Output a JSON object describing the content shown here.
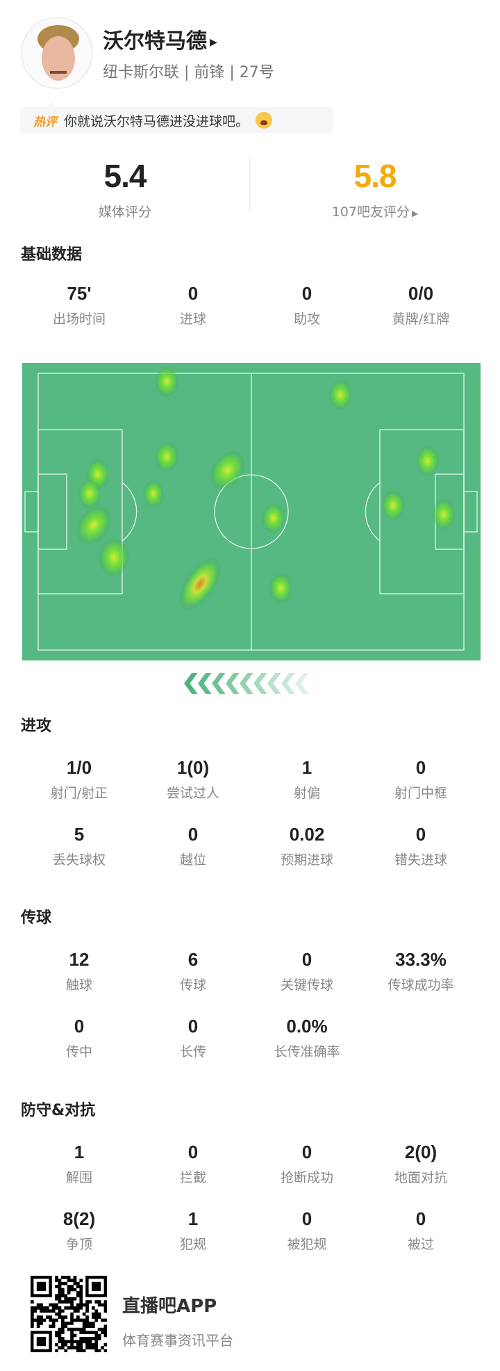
{
  "player": {
    "name": "沃尔特马德",
    "subtitle": "纽卡斯尔联 | 前锋 | 27号"
  },
  "hot_comment": {
    "tag": "热评",
    "text": "你就说沃尔特马德进没进球吧。"
  },
  "ratings": {
    "media": {
      "value": "5.4",
      "label": "媒体评分"
    },
    "fans": {
      "value": "5.8",
      "label": "107吧友评分",
      "color": "#f5a90a"
    }
  },
  "sections": [
    {
      "title": "基础数据",
      "rows": [
        [
          {
            "v": "75'",
            "l": "出场时间"
          },
          {
            "v": "0",
            "l": "进球"
          },
          {
            "v": "0",
            "l": "助攻"
          },
          {
            "v": "0/0",
            "l": "黄牌/红牌"
          }
        ]
      ]
    },
    {
      "title": "进攻",
      "rows": [
        [
          {
            "v": "1/0",
            "l": "射门/射正"
          },
          {
            "v": "1(0)",
            "l": "尝试过人"
          },
          {
            "v": "1",
            "l": "射偏"
          },
          {
            "v": "0",
            "l": "射门中框"
          }
        ],
        [
          {
            "v": "5",
            "l": "丢失球权"
          },
          {
            "v": "0",
            "l": "越位"
          },
          {
            "v": "0.02",
            "l": "预期进球"
          },
          {
            "v": "0",
            "l": "错失进球"
          }
        ]
      ]
    },
    {
      "title": "传球",
      "rows": [
        [
          {
            "v": "12",
            "l": "触球"
          },
          {
            "v": "6",
            "l": "传球"
          },
          {
            "v": "0",
            "l": "关键传球"
          },
          {
            "v": "33.3%",
            "l": "传球成功率"
          }
        ],
        [
          {
            "v": "0",
            "l": "传中"
          },
          {
            "v": "0",
            "l": "长传"
          },
          {
            "v": "0.0%",
            "l": "长传准确率"
          }
        ]
      ]
    },
    {
      "title": "防守&对抗",
      "rows": [
        [
          {
            "v": "1",
            "l": "解围"
          },
          {
            "v": "0",
            "l": "拦截"
          },
          {
            "v": "0",
            "l": "抢断成功"
          },
          {
            "v": "2(0)",
            "l": "地面对抗"
          }
        ],
        [
          {
            "v": "8(2)",
            "l": "争顶"
          },
          {
            "v": "1",
            "l": "犯规"
          },
          {
            "v": "0",
            "l": "被犯规"
          },
          {
            "v": "0",
            "l": "被过"
          }
        ]
      ]
    }
  ],
  "heatmap": {
    "pitch_color": "#55b981",
    "attack_direction": "left",
    "points_m": [
      [
        31.7,
        2,
        1
      ],
      [
        74.5,
        5.3,
        1
      ],
      [
        31.7,
        20.5,
        1
      ],
      [
        46.7,
        23.8,
        1.4
      ],
      [
        14.7,
        24.8,
        1
      ],
      [
        12.7,
        29.6,
        1
      ],
      [
        28.4,
        29.6,
        0.9
      ],
      [
        13.7,
        37.3,
        1.4
      ],
      [
        18.7,
        45.3,
        1.3
      ],
      [
        39.9,
        51.8,
        2
      ],
      [
        58,
        35.6,
        1
      ],
      [
        59.8,
        52.8,
        1
      ],
      [
        96,
        21.5,
        1
      ],
      [
        87.5,
        32.5,
        1
      ],
      [
        100,
        34.7,
        1
      ]
    ]
  },
  "footer": {
    "app": "直播吧APP",
    "tagline": "体育赛事资讯平台"
  }
}
